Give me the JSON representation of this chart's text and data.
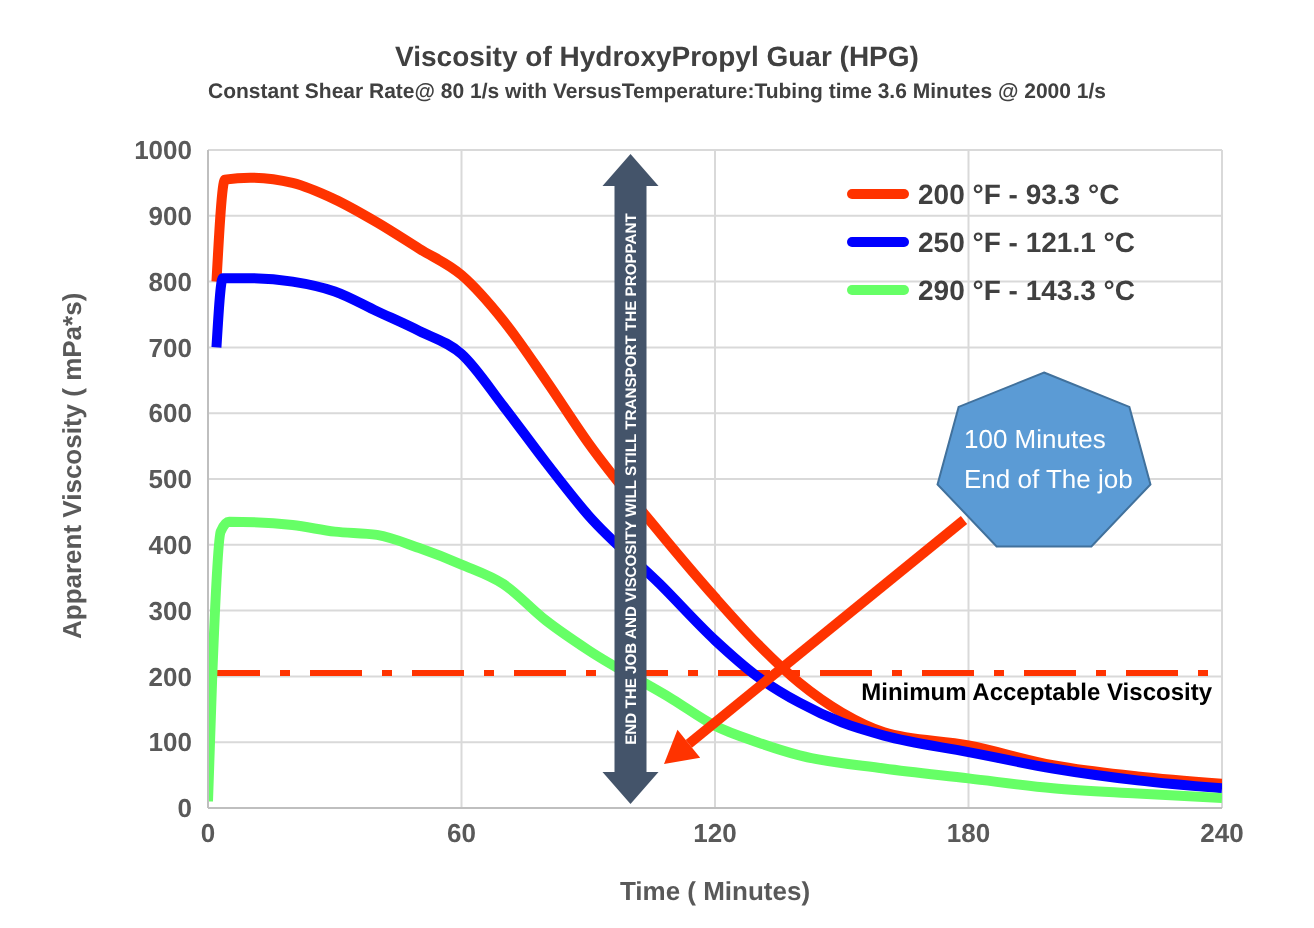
{
  "chart_data": {
    "type": "line",
    "title": "Viscosity of HydroxyPropyl Guar (HPG)",
    "subtitle": "Constant Shear Rate@ 80 1/s  with VersusTemperature:Tubing time 3.6 Minutes @ 2000 1/s",
    "xlabel": "Time ( Minutes)",
    "ylabel": "Apparent Viscosity ( mPa*s)",
    "xlim": [
      0,
      240
    ],
    "xticks": [
      0,
      60,
      120,
      180,
      240
    ],
    "ylim": [
      0,
      1000
    ],
    "yticks": [
      0,
      100,
      200,
      300,
      400,
      500,
      600,
      700,
      800,
      900,
      1000
    ],
    "grid": true,
    "legend": "top right",
    "series": [
      {
        "name": "200 °F - 93.3 °C",
        "color": "#ff3300",
        "x": [
          2,
          4,
          10,
          20,
          30,
          40,
          50,
          60,
          70,
          80,
          90,
          107,
          120,
          130,
          140,
          150,
          160,
          180,
          200,
          220,
          240
        ],
        "values": [
          800,
          955,
          958,
          950,
          925,
          890,
          850,
          810,
          740,
          650,
          555,
          418,
          320,
          250,
          190,
          145,
          115,
          95,
          65,
          48,
          37
        ]
      },
      {
        "name": "250 °F - 121.1 °C",
        "color": "#0000ff",
        "x": [
          2,
          3.5,
          10,
          20,
          30,
          40,
          50,
          60,
          70,
          80,
          90,
          107,
          120,
          130,
          140,
          150,
          160,
          180,
          200,
          220,
          240
        ],
        "values": [
          700,
          805,
          805,
          800,
          785,
          755,
          725,
          690,
          610,
          525,
          445,
          340,
          255,
          200,
          160,
          130,
          110,
          85,
          60,
          42,
          30
        ]
      },
      {
        "name": "290 °F - 143.3 °C",
        "color": "#66ff66",
        "x": [
          0,
          1,
          3,
          5,
          20,
          30,
          40,
          50,
          60,
          70,
          80,
          90,
          110,
          120,
          130,
          140,
          160,
          180,
          200,
          220,
          240
        ],
        "values": [
          10,
          200,
          420,
          435,
          430,
          420,
          415,
          395,
          370,
          340,
          285,
          240,
          165,
          125,
          100,
          80,
          60,
          45,
          30,
          22,
          15
        ]
      }
    ],
    "ref_lines": [
      {
        "axis": "y",
        "value": 205,
        "label": "Minimum  Acceptable  Viscosity",
        "color": "#ff3300",
        "line_style": "dashdot"
      },
      {
        "axis": "x",
        "value": 100,
        "label": "END  THE JOB AND VISCOSITY WILL STILL TRANSPORT THE PROPPANT",
        "color": "#44546a"
      }
    ],
    "annotations": [
      "100 Minutes\nEnd of The job"
    ]
  }
}
